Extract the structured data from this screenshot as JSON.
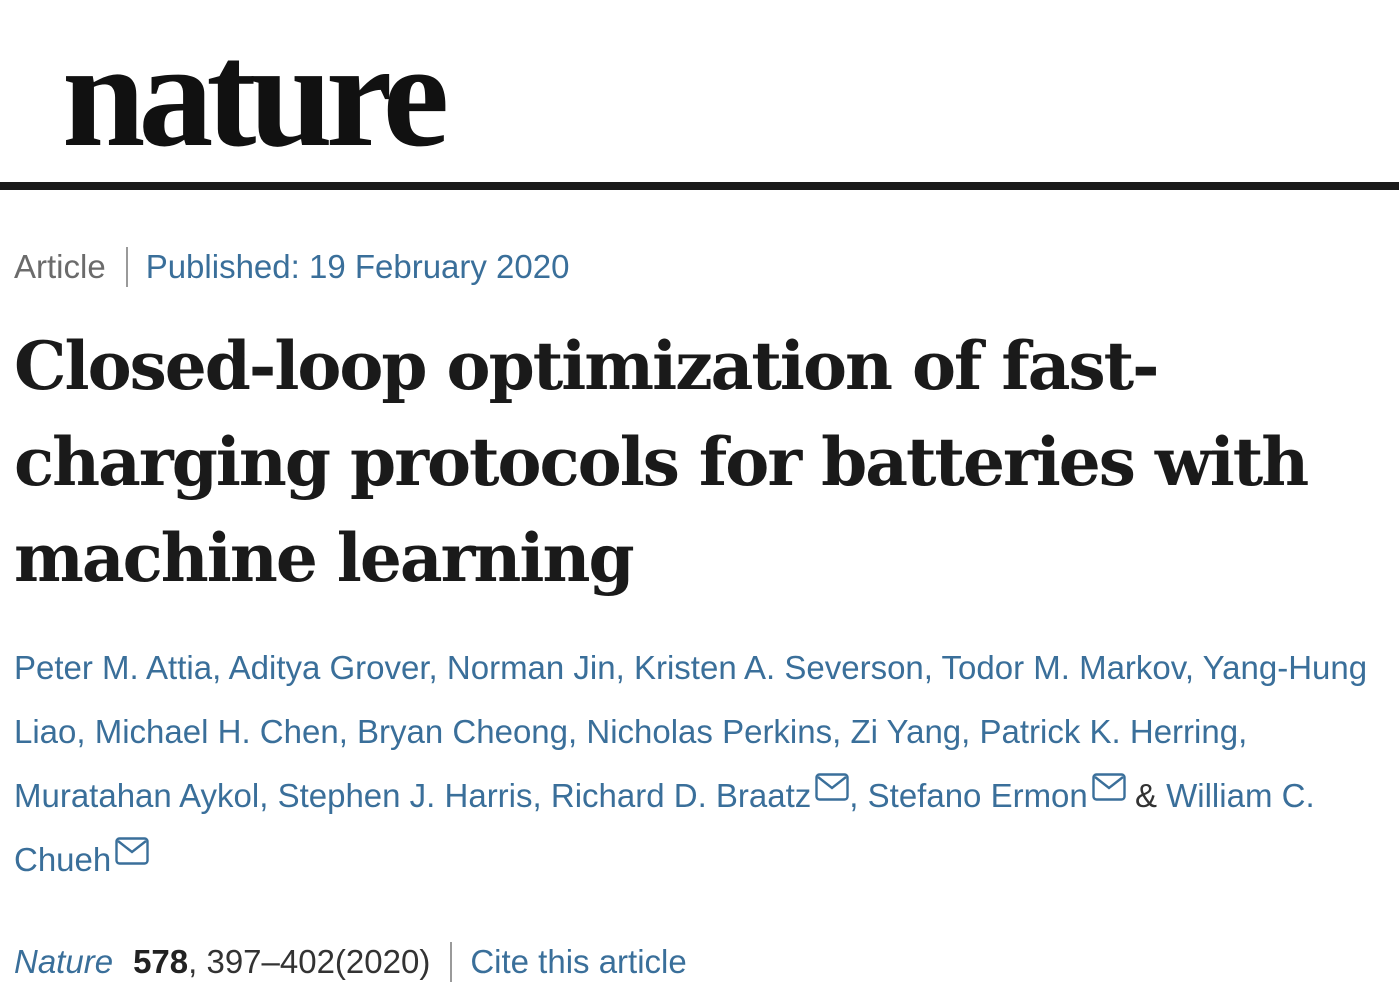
{
  "masthead": {
    "logo_text": "nature"
  },
  "article_meta": {
    "type": "Article",
    "published": "Published: 19 February 2020"
  },
  "title": "Closed-loop optimization of fast-charging protocols for batteries with machine learning",
  "authors": [
    {
      "name": "Peter M. Attia",
      "corresponding": false
    },
    {
      "name": "Aditya Grover",
      "corresponding": false
    },
    {
      "name": "Norman Jin",
      "corresponding": false
    },
    {
      "name": "Kristen A. Severson",
      "corresponding": false
    },
    {
      "name": "Todor M. Markov",
      "corresponding": false
    },
    {
      "name": "Yang-Hung Liao",
      "corresponding": false
    },
    {
      "name": "Michael H. Chen",
      "corresponding": false
    },
    {
      "name": "Bryan Cheong",
      "corresponding": false
    },
    {
      "name": "Nicholas Perkins",
      "corresponding": false
    },
    {
      "name": "Zi Yang",
      "corresponding": false
    },
    {
      "name": "Patrick K. Herring",
      "corresponding": false
    },
    {
      "name": "Muratahan Aykol",
      "corresponding": false
    },
    {
      "name": "Stephen J. Harris",
      "corresponding": false
    },
    {
      "name": "Richard D. Braatz",
      "corresponding": true
    },
    {
      "name": "Stefano Ermon",
      "corresponding": true
    },
    {
      "name": "William C. Chueh",
      "corresponding": true
    }
  ],
  "author_separator": ", ",
  "author_last_joiner": "& ",
  "icons": {
    "corresponding": "mail-icon"
  },
  "citation": {
    "journal": "Nature",
    "volume": "578",
    "pages": ", 397–402(2020)",
    "cite_label": "Cite this article"
  },
  "colors": {
    "link": "#3a6f9a",
    "text": "#222222",
    "muted": "#6b6b6b",
    "rule": "#1a1a1a"
  }
}
